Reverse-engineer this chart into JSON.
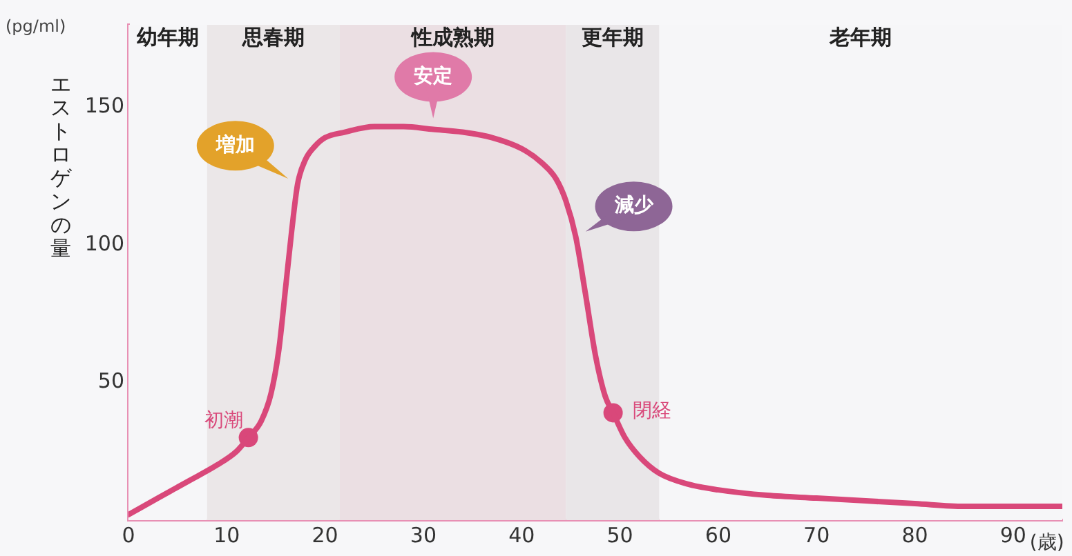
{
  "chart_data": {
    "type": "line",
    "ylabel": "エストロゲンの量",
    "xlabel": "(歳)",
    "xlim": [
      0,
      95
    ],
    "xticks": [
      0,
      10,
      20,
      30,
      40,
      50,
      60,
      70,
      80,
      90
    ],
    "ylim": [
      0,
      180
    ],
    "yticks": [
      50,
      100,
      150
    ],
    "grid": false,
    "legend": false,
    "marker": "none",
    "series": [
      {
        "color": "#d9487a",
        "x": [
          0,
          3,
          6,
          9,
          11,
          12.2,
          13.5,
          14.5,
          15.3,
          16,
          16.6,
          17.2,
          18,
          19,
          20,
          22,
          25,
          28,
          31,
          34,
          37,
          40,
          42,
          43.5,
          44.5,
          45.5,
          46.5,
          47.5,
          48.5,
          49.3,
          50.5,
          52,
          54,
          57,
          60,
          65,
          70,
          75,
          80,
          85,
          90,
          95
        ],
        "values": [
          2,
          8,
          14,
          20,
          25,
          30,
          36,
          46,
          62,
          85,
          105,
          122,
          131,
          136,
          139,
          141,
          143,
          143,
          142,
          141,
          139,
          135,
          130,
          124,
          116,
          103,
          82,
          60,
          45,
          39,
          30,
          23,
          17,
          13,
          11,
          9,
          8,
          7,
          6,
          5,
          5,
          5
        ]
      },
      {
        "type": "scatter",
        "marker": "circle",
        "color": "#d9487a",
        "x": [
          12.2,
          49.3
        ],
        "values": [
          30,
          39
        ]
      }
    ],
    "bands": [
      {
        "axis": "x",
        "from": 0,
        "to": 8,
        "label": "幼年期",
        "color": "#f6f6f8"
      },
      {
        "axis": "x",
        "from": 8,
        "to": 21.5,
        "label": "思春期",
        "color": "#ebe7e8"
      },
      {
        "axis": "x",
        "from": 21.5,
        "to": 44.5,
        "label": "性成熟期",
        "color": "#ebdfe3"
      },
      {
        "axis": "x",
        "from": 44.5,
        "to": 54,
        "label": "更年期",
        "color": "#e9e6e8"
      },
      {
        "axis": "x",
        "from": 54,
        "to": 95,
        "label": "老年期",
        "color": "#f6f6f8"
      }
    ],
    "annotations": [
      "(pg/ml)",
      {
        "text": "初潮",
        "x": 12.2,
        "y": 30
      },
      {
        "text": "閉経",
        "x": 49.3,
        "y": 39
      },
      {
        "text": "増加",
        "x": 17.2,
        "y": 122
      },
      {
        "text": "安定",
        "x": 31,
        "y": 142
      },
      {
        "text": "減少",
        "x": 45.5,
        "y": 103
      }
    ]
  }
}
